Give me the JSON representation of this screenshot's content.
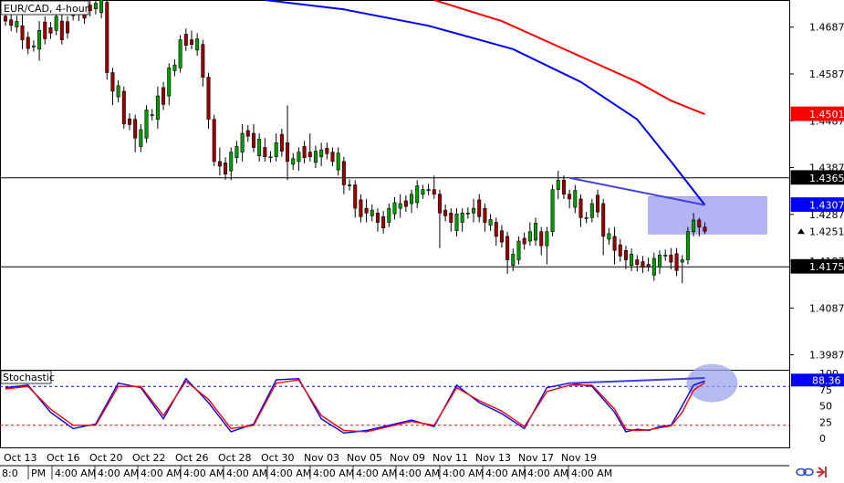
{
  "chart_data": [
    {
      "type": "candlestick",
      "symbol_label": "EUR/CAD, 4-hour",
      "y_axis": {
        "ticks": [
          1.4687,
          1.4587,
          1.4487,
          1.4387,
          1.4287,
          1.4187,
          1.4087,
          1.3987
        ],
        "ylim": [
          1.3955,
          1.4745
        ]
      },
      "horizontal_levels": [
        1.4365,
        1.4175
      ],
      "price_badges": [
        {
          "label": "1.4501",
          "value": 1.4501,
          "color": "#ff0000"
        },
        {
          "label": "1.4365",
          "value": 1.4365,
          "color": "#000000"
        },
        {
          "label": "1.4307",
          "value": 1.4307,
          "color": "#0000ff"
        },
        {
          "label": "1.4251",
          "value": 1.4251,
          "color": "#ffffff",
          "text_color": "#000000",
          "marker": "triangle"
        },
        {
          "label": "1.4175",
          "value": 1.4175,
          "color": "#000000"
        }
      ],
      "candles_sampled": [
        {
          "i": 0,
          "o": 1.471,
          "h": 1.4735,
          "l": 1.469,
          "c": 1.47
        },
        {
          "i": 3,
          "o": 1.469,
          "h": 1.472,
          "l": 1.464,
          "c": 1.466
        },
        {
          "i": 6,
          "o": 1.464,
          "h": 1.47,
          "l": 1.4615,
          "c": 1.468
        },
        {
          "i": 9,
          "o": 1.468,
          "h": 1.4725,
          "l": 1.467,
          "c": 1.471
        },
        {
          "i": 10,
          "o": 1.47,
          "h": 1.474,
          "l": 1.465,
          "c": 1.466
        },
        {
          "i": 13,
          "o": 1.474,
          "h": 1.4745,
          "l": 1.47,
          "c": 1.472
        },
        {
          "i": 18,
          "o": 1.474,
          "h": 1.4745,
          "l": 1.4575,
          "c": 1.459
        },
        {
          "i": 19,
          "o": 1.459,
          "h": 1.46,
          "l": 1.452,
          "c": 1.455
        },
        {
          "i": 21,
          "o": 1.455,
          "h": 1.456,
          "l": 1.447,
          "c": 1.448
        },
        {
          "i": 23,
          "o": 1.449,
          "h": 1.45,
          "l": 1.442,
          "c": 1.445
        },
        {
          "i": 25,
          "o": 1.445,
          "h": 1.452,
          "l": 1.444,
          "c": 1.451
        },
        {
          "i": 27,
          "o": 1.449,
          "h": 1.456,
          "l": 1.447,
          "c": 1.454
        },
        {
          "i": 29,
          "o": 1.454,
          "h": 1.461,
          "l": 1.452,
          "c": 1.46
        },
        {
          "i": 31,
          "o": 1.46,
          "h": 1.467,
          "l": 1.459,
          "c": 1.466
        },
        {
          "i": 33,
          "o": 1.466,
          "h": 1.468,
          "l": 1.464,
          "c": 1.465
        },
        {
          "i": 35,
          "o": 1.465,
          "h": 1.466,
          "l": 1.456,
          "c": 1.458
        },
        {
          "i": 36,
          "o": 1.458,
          "h": 1.459,
          "l": 1.447,
          "c": 1.449
        },
        {
          "i": 37,
          "o": 1.449,
          "h": 1.45,
          "l": 1.439,
          "c": 1.44
        },
        {
          "i": 38,
          "o": 1.44,
          "h": 1.443,
          "l": 1.437,
          "c": 1.439
        },
        {
          "i": 40,
          "o": 1.438,
          "h": 1.443,
          "l": 1.436,
          "c": 1.442
        },
        {
          "i": 42,
          "o": 1.442,
          "h": 1.448,
          "l": 1.44,
          "c": 1.446
        },
        {
          "i": 44,
          "o": 1.446,
          "h": 1.448,
          "l": 1.442,
          "c": 1.443
        },
        {
          "i": 46,
          "o": 1.443,
          "h": 1.445,
          "l": 1.44,
          "c": 1.441
        },
        {
          "i": 48,
          "o": 1.441,
          "h": 1.446,
          "l": 1.44,
          "c": 1.444
        },
        {
          "i": 50,
          "o": 1.444,
          "h": 1.452,
          "l": 1.436,
          "c": 1.44
        },
        {
          "i": 52,
          "o": 1.44,
          "h": 1.443,
          "l": 1.438,
          "c": 1.442
        },
        {
          "i": 54,
          "o": 1.442,
          "h": 1.446,
          "l": 1.44,
          "c": 1.441
        },
        {
          "i": 56,
          "o": 1.441,
          "h": 1.444,
          "l": 1.439,
          "c": 1.4425
        },
        {
          "i": 58,
          "o": 1.442,
          "h": 1.443,
          "l": 1.439,
          "c": 1.44
        },
        {
          "i": 60,
          "o": 1.44,
          "h": 1.441,
          "l": 1.433,
          "c": 1.435
        },
        {
          "i": 62,
          "o": 1.435,
          "h": 1.436,
          "l": 1.428,
          "c": 1.43
        },
        {
          "i": 64,
          "o": 1.43,
          "h": 1.432,
          "l": 1.427,
          "c": 1.429
        },
        {
          "i": 66,
          "o": 1.429,
          "h": 1.43,
          "l": 1.425,
          "c": 1.427
        },
        {
          "i": 68,
          "o": 1.427,
          "h": 1.431,
          "l": 1.426,
          "c": 1.43
        },
        {
          "i": 70,
          "o": 1.43,
          "h": 1.433,
          "l": 1.428,
          "c": 1.431
        },
        {
          "i": 72,
          "o": 1.431,
          "h": 1.434,
          "l": 1.429,
          "c": 1.433
        },
        {
          "i": 74,
          "o": 1.433,
          "h": 1.435,
          "l": 1.432,
          "c": 1.434
        },
        {
          "i": 76,
          "o": 1.434,
          "h": 1.437,
          "l": 1.432,
          "c": 1.433
        },
        {
          "i": 77,
          "o": 1.433,
          "h": 1.434,
          "l": 1.4215,
          "c": 1.429
        },
        {
          "i": 79,
          "o": 1.429,
          "h": 1.43,
          "l": 1.425,
          "c": 1.427
        },
        {
          "i": 81,
          "o": 1.427,
          "h": 1.43,
          "l": 1.425,
          "c": 1.429
        },
        {
          "i": 83,
          "o": 1.429,
          "h": 1.432,
          "l": 1.427,
          "c": 1.43
        },
        {
          "i": 85,
          "o": 1.43,
          "h": 1.431,
          "l": 1.425,
          "c": 1.427
        },
        {
          "i": 87,
          "o": 1.427,
          "h": 1.428,
          "l": 1.422,
          "c": 1.424
        },
        {
          "i": 89,
          "o": 1.424,
          "h": 1.425,
          "l": 1.416,
          "c": 1.419
        },
        {
          "i": 91,
          "o": 1.419,
          "h": 1.424,
          "l": 1.418,
          "c": 1.423
        },
        {
          "i": 93,
          "o": 1.423,
          "h": 1.427,
          "l": 1.422,
          "c": 1.425
        },
        {
          "i": 95,
          "o": 1.425,
          "h": 1.426,
          "l": 1.42,
          "c": 1.422
        },
        {
          "i": 96,
          "o": 1.422,
          "h": 1.426,
          "l": 1.418,
          "c": 1.425
        },
        {
          "i": 97,
          "o": 1.425,
          "h": 1.435,
          "l": 1.424,
          "c": 1.434
        },
        {
          "i": 98,
          "o": 1.434,
          "h": 1.438,
          "l": 1.432,
          "c": 1.436
        },
        {
          "i": 99,
          "o": 1.436,
          "h": 1.437,
          "l": 1.432,
          "c": 1.433
        },
        {
          "i": 100,
          "o": 1.433,
          "h": 1.434,
          "l": 1.43,
          "c": 1.432
        },
        {
          "i": 102,
          "o": 1.432,
          "h": 1.433,
          "l": 1.426,
          "c": 1.428
        },
        {
          "i": 104,
          "o": 1.428,
          "h": 1.432,
          "l": 1.427,
          "c": 1.431
        },
        {
          "i": 106,
          "o": 1.431,
          "h": 1.432,
          "l": 1.42,
          "c": 1.424
        },
        {
          "i": 108,
          "o": 1.424,
          "h": 1.426,
          "l": 1.418,
          "c": 1.421
        },
        {
          "i": 110,
          "o": 1.421,
          "h": 1.422,
          "l": 1.417,
          "c": 1.419
        },
        {
          "i": 112,
          "o": 1.419,
          "h": 1.42,
          "l": 1.4165,
          "c": 1.418
        },
        {
          "i": 114,
          "o": 1.418,
          "h": 1.4195,
          "l": 1.4165,
          "c": 1.4175
        },
        {
          "i": 116,
          "o": 1.4175,
          "h": 1.421,
          "l": 1.416,
          "c": 1.42
        },
        {
          "i": 118,
          "o": 1.42,
          "h": 1.4215,
          "l": 1.417,
          "c": 1.4185
        },
        {
          "i": 120,
          "o": 1.4185,
          "h": 1.42,
          "l": 1.414,
          "c": 1.419
        },
        {
          "i": 121,
          "o": 1.419,
          "h": 1.426,
          "l": 1.418,
          "c": 1.425
        },
        {
          "i": 122,
          "o": 1.425,
          "h": 1.429,
          "l": 1.424,
          "c": 1.4275
        },
        {
          "i": 123,
          "o": 1.4275,
          "h": 1.428,
          "l": 1.424,
          "c": 1.426
        },
        {
          "i": 124,
          "o": 1.426,
          "h": 1.427,
          "l": 1.4245,
          "c": 1.4251
        }
      ],
      "moving_averages": [
        {
          "color": "#0000ff",
          "points": [
            [
              46,
              1.4745
            ],
            [
              60,
              1.4725
            ],
            [
              75,
              1.469
            ],
            [
              90,
              1.464
            ],
            [
              102,
              1.457
            ],
            [
              112,
              1.449
            ],
            [
              118,
              1.44
            ],
            [
              124,
              1.4307
            ]
          ]
        },
        {
          "color": "#ff0000",
          "points": [
            [
              76,
              1.4745
            ],
            [
              88,
              1.47
            ],
            [
              100,
              1.4635
            ],
            [
              112,
              1.457
            ],
            [
              118,
              1.453
            ],
            [
              124,
              1.4501
            ]
          ]
        }
      ],
      "annotations": [
        {
          "kind": "trendline",
          "from": [
            100,
            1.4365
          ],
          "to": [
            124,
            1.4307
          ],
          "color": "#4040e0"
        },
        {
          "kind": "zone",
          "x0": 114,
          "x1": 135,
          "y_low": 1.4245,
          "y_high": 1.4325,
          "color": "#b4b4f4"
        }
      ]
    },
    {
      "type": "line",
      "indicator_label": "Stochastic",
      "y_axis": {
        "ticks": [
          100,
          75,
          50,
          25,
          0
        ],
        "ylim": [
          0,
          100
        ]
      },
      "levels": [
        80,
        20
      ],
      "value_badge": {
        "label": "88.36",
        "value": 88.36,
        "color": "#0000ff"
      },
      "series": [
        {
          "color": "#0000ff",
          "points": [
            [
              0,
              78
            ],
            [
              4,
              82
            ],
            [
              8,
              40
            ],
            [
              12,
              15
            ],
            [
              16,
              22
            ],
            [
              20,
              85
            ],
            [
              24,
              78
            ],
            [
              28,
              30
            ],
            [
              32,
              92
            ],
            [
              36,
              55
            ],
            [
              40,
              10
            ],
            [
              44,
              22
            ],
            [
              48,
              90
            ],
            [
              52,
              92
            ],
            [
              56,
              30
            ],
            [
              60,
              8
            ],
            [
              64,
              12
            ],
            [
              68,
              20
            ],
            [
              72,
              28
            ],
            [
              76,
              18
            ],
            [
              80,
              82
            ],
            [
              84,
              55
            ],
            [
              88,
              38
            ],
            [
              92,
              15
            ],
            [
              96,
              78
            ],
            [
              100,
              85
            ],
            [
              104,
              80
            ],
            [
              108,
              40
            ],
            [
              110,
              10
            ],
            [
              112,
              14
            ],
            [
              114,
              12
            ],
            [
              116,
              18
            ],
            [
              118,
              20
            ],
            [
              120,
              50
            ],
            [
              122,
              82
            ],
            [
              124,
              88.36
            ]
          ]
        },
        {
          "color": "#ff0000",
          "points": [
            [
              0,
              76
            ],
            [
              4,
              80
            ],
            [
              8,
              45
            ],
            [
              12,
              20
            ],
            [
              16,
              20
            ],
            [
              20,
              80
            ],
            [
              24,
              80
            ],
            [
              28,
              35
            ],
            [
              32,
              88
            ],
            [
              36,
              60
            ],
            [
              40,
              15
            ],
            [
              44,
              20
            ],
            [
              48,
              85
            ],
            [
              52,
              90
            ],
            [
              56,
              35
            ],
            [
              60,
              12
            ],
            [
              64,
              10
            ],
            [
              68,
              18
            ],
            [
              72,
              26
            ],
            [
              76,
              20
            ],
            [
              80,
              78
            ],
            [
              84,
              58
            ],
            [
              88,
              42
            ],
            [
              92,
              18
            ],
            [
              96,
              72
            ],
            [
              100,
              82
            ],
            [
              104,
              82
            ],
            [
              108,
              45
            ],
            [
              110,
              14
            ],
            [
              112,
              12
            ],
            [
              114,
              13
            ],
            [
              116,
              16
            ],
            [
              118,
              19
            ],
            [
              120,
              40
            ],
            [
              122,
              74
            ],
            [
              124,
              86
            ]
          ]
        }
      ],
      "annotations": [
        {
          "kind": "trendline",
          "from": [
            100,
            85
          ],
          "to": [
            124,
            93
          ],
          "color": "#4040e0"
        },
        {
          "kind": "highlight_ellipse",
          "center": [
            124,
            85
          ],
          "color": "#9aa4ec"
        }
      ]
    }
  ],
  "x_axis": {
    "date_labels": [
      "Oct 13",
      "Oct 16",
      "Oct 20",
      "Oct 22",
      "Oct 26",
      "Oct 28",
      "Oct 30",
      "Nov 03",
      "Nov 05",
      "Nov 09",
      "Nov 11",
      "Nov 13",
      "Nov 17",
      "Nov 19"
    ],
    "time_labels": [
      "8:0",
      "PM",
      "4:00 AM",
      "4:00 AM",
      "4:00 AM",
      "4:00 AM",
      "4:00 AM",
      "4:00 AM",
      "4:00 AM",
      "4:00 AM",
      "4:00 AM",
      "4:00 AM",
      "4:00 AM",
      "4:00 AM",
      "4:00 AM"
    ]
  },
  "colors": {
    "up_candle": "#00a000",
    "down_candle": "#a00000",
    "frame": "#000000"
  }
}
